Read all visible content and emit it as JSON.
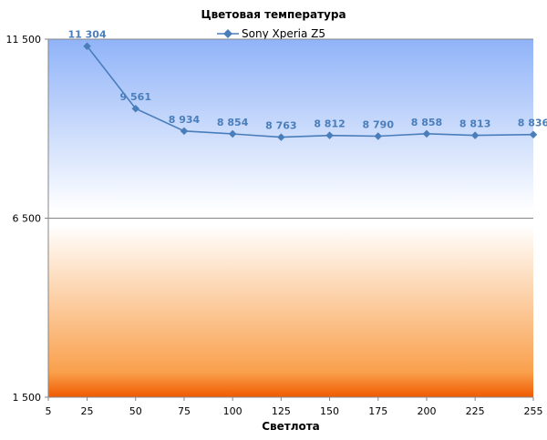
{
  "chart_data": {
    "type": "line",
    "title": "Цветовая температура",
    "xlabel": "Светлота",
    "ylabel": "",
    "x_ticks": [
      "5",
      "25",
      "50",
      "75",
      "100",
      "125",
      "150",
      "175",
      "200",
      "225",
      "255"
    ],
    "x_tick_values": [
      5,
      25,
      50,
      75,
      100,
      125,
      150,
      175,
      200,
      225,
      255
    ],
    "y_ticks": [
      "1 500",
      "6 500",
      "11 500"
    ],
    "y_tick_values": [
      1500,
      6500,
      11500
    ],
    "xlim": [
      5,
      255
    ],
    "ylim": [
      1500,
      11500
    ],
    "grid": true,
    "legend_position": "top",
    "series": [
      {
        "name": "Sony Xperia Z5",
        "color": "#4a7ebb",
        "x": [
          25,
          50,
          75,
          100,
          125,
          150,
          175,
          200,
          225,
          255
        ],
        "values": [
          11304,
          9561,
          8934,
          8854,
          8763,
          8812,
          8790,
          8858,
          8813,
          8836
        ],
        "labels": [
          "11 304",
          "9 561",
          "8 934",
          "8 854",
          "8 763",
          "8 812",
          "8 790",
          "8 858",
          "8 813",
          "8 836"
        ]
      }
    ]
  }
}
